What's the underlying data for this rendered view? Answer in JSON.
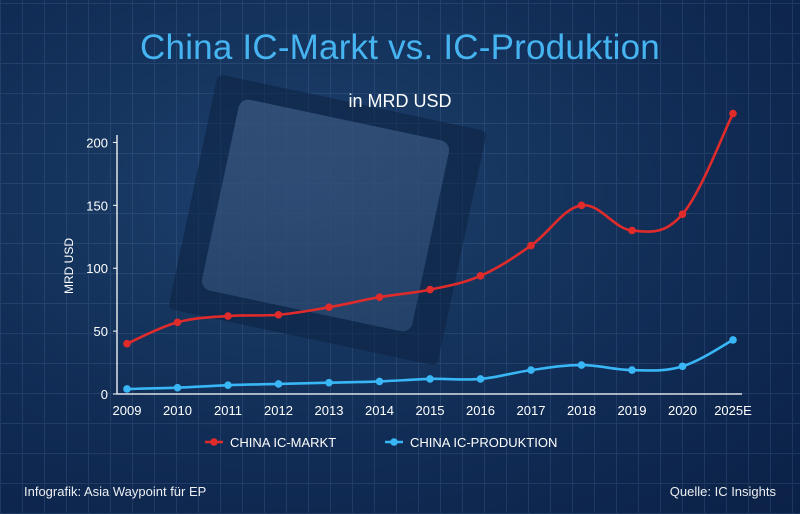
{
  "title": "China IC-Markt vs. IC-Produktion",
  "subtitle": "in MRD USD",
  "footer": {
    "left": "Infografik: Asia Waypoint für EP",
    "right": "Quelle: IC Insights"
  },
  "chart_data": {
    "type": "line",
    "x": [
      "2009",
      "2010",
      "2011",
      "2012",
      "2013",
      "2014",
      "2015",
      "2016",
      "2017",
      "2018",
      "2019",
      "2020",
      "2025E"
    ],
    "ylabel": "MRD USD",
    "xlabel": "",
    "ylim": [
      0,
      225
    ],
    "yticks": [
      0,
      50,
      100,
      150,
      200
    ],
    "grid": false,
    "legend_position": "bottom",
    "series": [
      {
        "name": "CHINA IC-MARKT",
        "color": "#e02b2b",
        "values": [
          40,
          57,
          62,
          63,
          69,
          77,
          83,
          94,
          118,
          150,
          130,
          143,
          223
        ]
      },
      {
        "name": "CHINA IC-PRODUKTION",
        "color": "#38b6f5",
        "values": [
          4,
          5,
          7,
          8,
          9,
          10,
          12,
          12,
          19,
          23,
          19,
          22,
          43
        ]
      }
    ]
  }
}
